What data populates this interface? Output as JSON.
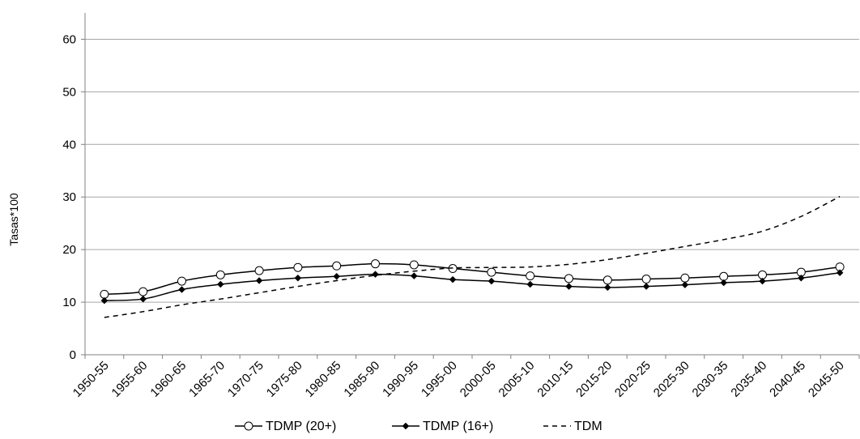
{
  "chart_data": {
    "type": "line",
    "title": "",
    "xlabel": "",
    "ylabel": "Tasas*100",
    "ylim": [
      0,
      65
    ],
    "yticks": [
      0,
      10,
      20,
      30,
      40,
      50,
      60
    ],
    "grid": true,
    "legend_position": "bottom",
    "categories": [
      "1950-55",
      "1955-60",
      "1960-65",
      "1965-70",
      "1970-75",
      "1975-80",
      "1980-85",
      "1985-90",
      "1990-95",
      "1995-00",
      "2000-05",
      "2005-10",
      "2010-15",
      "2015-20",
      "2020-25",
      "2025-30",
      "2030-35",
      "2035-40",
      "2040-45",
      "2045-50"
    ],
    "series": [
      {
        "name": "TDMP (20+)",
        "marker": "open-circle",
        "dash": "solid",
        "color": "#000000",
        "values": [
          11.5,
          12.0,
          14.0,
          15.2,
          16.0,
          16.6,
          16.9,
          17.3,
          17.1,
          16.4,
          15.7,
          15.0,
          14.5,
          14.2,
          14.4,
          14.6,
          14.9,
          15.2,
          15.7,
          16.7
        ]
      },
      {
        "name": "TDMP (16+)",
        "marker": "filled-diamond",
        "dash": "solid",
        "color": "#000000",
        "values": [
          10.3,
          10.6,
          12.4,
          13.4,
          14.1,
          14.6,
          14.9,
          15.3,
          15.0,
          14.3,
          14.0,
          13.4,
          13.0,
          12.8,
          13.0,
          13.3,
          13.7,
          14.0,
          14.6,
          15.6
        ]
      },
      {
        "name": "TDM",
        "marker": "none",
        "dash": "dashed",
        "color": "#000000",
        "values": [
          7.1,
          8.2,
          9.5,
          10.6,
          11.8,
          13.0,
          14.1,
          15.1,
          15.9,
          16.5,
          16.6,
          16.7,
          17.2,
          18.1,
          19.3,
          20.6,
          21.9,
          23.5,
          26.3,
          30.1
        ]
      }
    ]
  }
}
